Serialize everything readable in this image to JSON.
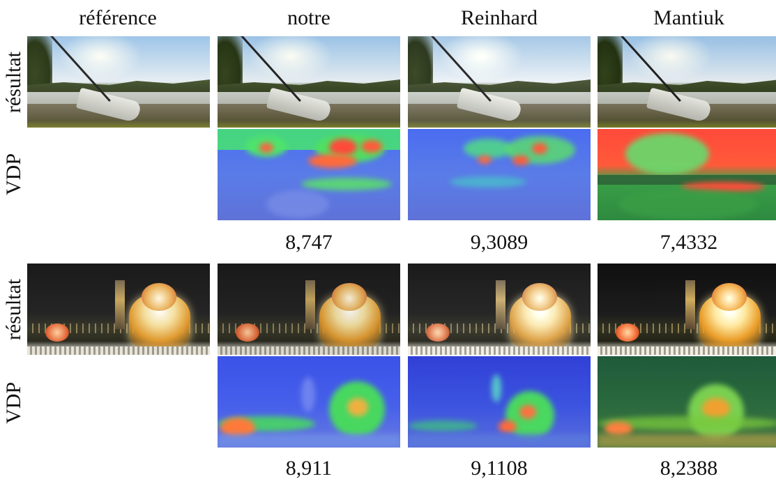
{
  "columns": {
    "reference": "référence",
    "ours": "notre",
    "reinhard": "Reinhard",
    "mantiuk": "Mantiuk"
  },
  "row_labels": {
    "result": "résultat",
    "vdp": "VDP"
  },
  "scenes": [
    {
      "scores": {
        "ours": "8,747",
        "reinhard": "9,3089",
        "mantiuk": "7,4332"
      }
    },
    {
      "scores": {
        "ours": "8,911",
        "reinhard": "9,1108",
        "mantiuk": "8,2388"
      }
    }
  ],
  "colors": {
    "vdp_low": "#4a6cf0",
    "vdp_mid": "#3fd36a",
    "vdp_high": "#ff4a3a"
  }
}
